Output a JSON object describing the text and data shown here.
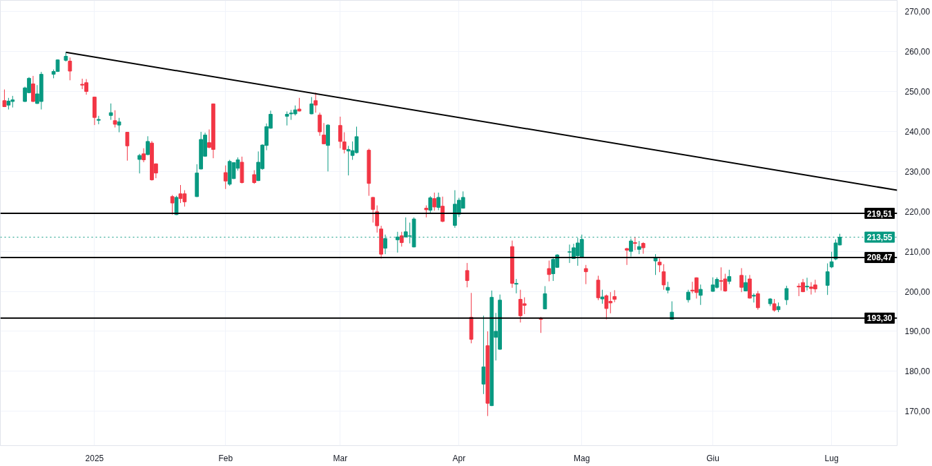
{
  "chart_data": {
    "type": "candlestick",
    "series": [
      {
        "color": "#089981",
        "x": [
          "2024-12-12",
          "2024-12-13",
          "2024-12-16",
          "2024-12-17",
          "2024-12-19",
          "2024-12-20",
          "2024-12-23",
          "2024-12-24",
          "2024-12-26",
          "2025-01-03",
          "2025-01-06",
          "2025-01-08",
          "2025-01-13",
          "2025-01-15",
          "2025-01-22",
          "2025-01-27",
          "2025-01-28",
          "2025-01-29",
          "2025-02-04",
          "2025-02-05",
          "2025-02-06",
          "2025-02-11",
          "2025-02-12",
          "2025-02-13",
          "2025-02-14",
          "2025-02-18",
          "2025-02-19",
          "2025-02-20",
          "2025-02-24",
          "2025-02-28",
          "2025-03-05",
          "2025-03-06",
          "2025-03-07",
          "2025-03-14",
          "2025-03-17",
          "2025-03-19",
          "2025-03-20",
          "2025-03-21",
          "2025-03-25",
          "2025-03-27",
          "2025-03-31",
          "2025-04-01",
          "2025-04-02",
          "2025-04-07",
          "2025-04-09",
          "2025-04-10",
          "2025-04-11",
          "2025-04-15",
          "2025-04-22",
          "2025-04-24",
          "2025-04-25",
          "2025-04-28",
          "2025-04-29",
          "2025-04-30",
          "2025-05-01",
          "2025-05-06",
          "2025-05-13",
          "2025-05-15",
          "2025-05-19",
          "2025-05-22",
          "2025-05-23",
          "2025-05-27",
          "2025-05-30",
          "2025-06-02",
          "2025-06-03",
          "2025-06-06",
          "2025-06-10",
          "2025-06-12",
          "2025-06-16",
          "2025-06-18",
          "2025-06-20",
          "2025-06-25",
          "2025-06-30",
          "2025-07-01",
          "2025-07-02",
          "2025-07-03"
        ],
        "ohlc": [
          [
            246.6,
            248.4,
            245.5,
            247.6
          ],
          [
            247.5,
            248.9,
            246.0,
            247.9
          ],
          [
            247.5,
            251.2,
            247.4,
            250.9
          ],
          [
            249.7,
            253.6,
            249.6,
            253.3
          ],
          [
            247.0,
            251.6,
            246.9,
            249.4
          ],
          [
            247.5,
            254.9,
            245.5,
            254.3
          ],
          [
            254.3,
            255.5,
            253.3,
            255.0
          ],
          [
            255.0,
            258.0,
            254.9,
            257.9
          ],
          [
            257.8,
            259.8,
            257.5,
            258.8
          ],
          [
            242.8,
            243.9,
            241.8,
            243.0
          ],
          [
            244.0,
            247.0,
            242.9,
            244.7
          ],
          [
            241.6,
            243.4,
            239.8,
            242.4
          ],
          [
            233.0,
            234.4,
            229.5,
            234.0
          ],
          [
            234.2,
            238.8,
            234.1,
            237.5
          ],
          [
            219.2,
            223.9,
            219.1,
            223.5
          ],
          [
            223.7,
            231.8,
            223.6,
            229.6
          ],
          [
            230.6,
            239.9,
            230.5,
            238.0
          ],
          [
            233.8,
            239.7,
            233.7,
            239.1
          ],
          [
            226.8,
            232.9,
            226.4,
            232.5
          ],
          [
            228.2,
            232.3,
            228.1,
            232.2
          ],
          [
            230.8,
            233.5,
            230.2,
            232.9
          ],
          [
            227.7,
            235.0,
            227.6,
            232.3
          ],
          [
            230.7,
            236.8,
            230.4,
            236.6
          ],
          [
            236.5,
            242.0,
            235.3,
            241.2
          ],
          [
            240.8,
            245.2,
            240.7,
            244.3
          ],
          [
            243.8,
            245.0,
            241.5,
            244.3
          ],
          [
            244.4,
            245.4,
            242.9,
            244.6
          ],
          [
            244.4,
            246.5,
            244.0,
            245.4
          ],
          [
            244.4,
            248.6,
            244.3,
            246.9
          ],
          [
            236.5,
            241.8,
            230.0,
            241.6
          ],
          [
            235.1,
            236.4,
            229.0,
            235.5
          ],
          [
            234.0,
            237.5,
            232.9,
            235.2
          ],
          [
            234.7,
            241.2,
            234.5,
            238.7
          ],
          [
            210.8,
            214.2,
            209.3,
            213.2
          ],
          [
            212.9,
            214.9,
            209.7,
            213.6
          ],
          [
            213.6,
            218.5,
            213.5,
            214.9
          ],
          [
            213.8,
            217.2,
            212.0,
            213.9
          ],
          [
            211.1,
            218.5,
            211.0,
            218.1
          ],
          [
            220.3,
            223.8,
            219.7,
            223.4
          ],
          [
            221.0,
            224.7,
            220.3,
            223.5
          ],
          [
            216.5,
            225.3,
            215.9,
            221.8
          ],
          [
            219.3,
            223.4,
            218.6,
            222.8
          ],
          [
            220.8,
            225.0,
            220.7,
            223.5
          ],
          [
            176.8,
            193.9,
            174.3,
            181.1
          ],
          [
            171.4,
            200.2,
            171.3,
            198.5
          ],
          [
            188.5,
            194.6,
            182.7,
            190.0
          ],
          [
            185.5,
            199.2,
            185.4,
            197.8
          ],
          [
            201.8,
            203.1,
            199.5,
            202.0
          ],
          [
            195.6,
            201.3,
            195.5,
            199.4
          ],
          [
            204.4,
            208.6,
            202.6,
            208.0
          ],
          [
            206.0,
            209.3,
            205.9,
            209.1
          ],
          [
            209.8,
            211.7,
            207.1,
            209.9
          ],
          [
            208.2,
            211.9,
            208.1,
            210.9
          ],
          [
            208.9,
            213.4,
            206.4,
            212.1
          ],
          [
            208.6,
            214.2,
            208.5,
            213.0
          ],
          [
            198.1,
            200.4,
            196.9,
            198.6
          ],
          [
            210.0,
            213.2,
            208.7,
            212.6
          ],
          [
            210.5,
            212.6,
            209.3,
            211.2
          ],
          [
            207.6,
            209.3,
            204.1,
            208.5
          ],
          [
            200.3,
            202.4,
            199.5,
            201.0
          ],
          [
            193.0,
            197.5,
            192.9,
            194.8
          ],
          [
            197.9,
            200.4,
            197.2,
            199.8
          ],
          [
            199.0,
            201.7,
            196.6,
            200.5
          ],
          [
            200.0,
            203.5,
            199.9,
            201.6
          ],
          [
            201.0,
            203.5,
            200.7,
            203.0
          ],
          [
            202.5,
            205.4,
            201.8,
            203.7
          ],
          [
            200.1,
            204.0,
            200.0,
            202.2
          ],
          [
            198.8,
            199.5,
            197.2,
            199.0
          ],
          [
            196.9,
            198.3,
            196.3,
            198.1
          ],
          [
            195.4,
            197.2,
            194.8,
            196.2
          ],
          [
            197.9,
            201.4,
            196.6,
            200.7
          ],
          [
            201.1,
            203.4,
            200.2,
            201.3
          ],
          [
            201.5,
            207.0,
            199.1,
            204.9
          ],
          [
            206.1,
            209.9,
            205.8,
            207.4
          ],
          [
            208.1,
            213.0,
            207.8,
            212.1
          ],
          [
            211.6,
            214.4,
            211.5,
            213.55
          ]
        ]
      },
      {
        "color": "#f23645",
        "x": [
          "2024-12-11",
          "2024-12-18",
          "2024-12-27",
          "2024-12-30",
          "2024-12-31",
          "2025-01-02",
          "2025-01-07",
          "2025-01-10",
          "2025-01-14",
          "2025-01-16",
          "2025-01-17",
          "2025-01-21",
          "2025-01-23",
          "2025-01-24",
          "2025-01-30",
          "2025-01-31",
          "2025-02-03",
          "2025-02-07",
          "2025-02-10",
          "2025-02-21",
          "2025-02-25",
          "2025-02-26",
          "2025-02-27",
          "2025-03-03",
          "2025-03-04",
          "2025-03-10",
          "2025-03-11",
          "2025-03-12",
          "2025-03-13",
          "2025-03-18",
          "2025-03-24",
          "2025-03-26",
          "2025-03-28",
          "2025-04-03",
          "2025-04-04",
          "2025-04-08",
          "2025-04-14",
          "2025-04-16",
          "2025-04-17",
          "2025-04-21",
          "2025-04-23",
          "2025-05-02",
          "2025-05-05",
          "2025-05-07",
          "2025-05-08",
          "2025-05-09",
          "2025-05-12",
          "2025-05-14",
          "2025-05-16",
          "2025-05-20",
          "2025-05-21",
          "2025-05-28",
          "2025-05-29",
          "2025-06-04",
          "2025-06-05",
          "2025-06-09",
          "2025-06-11",
          "2025-06-13",
          "2025-06-17",
          "2025-06-23",
          "2025-06-24",
          "2025-06-26",
          "2025-06-27"
        ],
        "ohlc": [
          [
            247.7,
            250.5,
            246.1,
            246.2
          ],
          [
            251.9,
            253.9,
            247.4,
            247.5
          ],
          [
            257.6,
            258.5,
            252.8,
            255.1
          ],
          [
            251.8,
            253.2,
            250.6,
            251.6
          ],
          [
            252.2,
            253.1,
            249.2,
            250.0
          ],
          [
            248.6,
            248.7,
            241.6,
            243.5
          ],
          [
            242.7,
            245.3,
            241.0,
            241.8
          ],
          [
            239.8,
            239.9,
            232.7,
            236.4
          ],
          [
            234.4,
            235.8,
            232.3,
            232.9
          ],
          [
            237.1,
            237.6,
            227.7,
            227.9
          ],
          [
            231.9,
            232.0,
            228.3,
            229.6
          ],
          [
            223.7,
            224.1,
            219.2,
            222.1
          ],
          [
            224.4,
            226.6,
            222.1,
            223.2
          ],
          [
            224.4,
            225.3,
            221.2,
            222.4
          ],
          [
            237.2,
            240.5,
            235.8,
            236.0
          ],
          [
            246.9,
            247.0,
            233.3,
            235.5
          ],
          [
            229.7,
            231.5,
            225.6,
            227.6
          ],
          [
            232.3,
            233.7,
            227.0,
            227.2
          ],
          [
            229.2,
            230.3,
            226.9,
            227.2
          ],
          [
            245.6,
            248.4,
            245.0,
            245.1
          ],
          [
            247.7,
            249.7,
            244.7,
            246.6
          ],
          [
            244.1,
            244.7,
            238.9,
            239.9
          ],
          [
            239.1,
            242.1,
            236.8,
            236.9
          ],
          [
            241.5,
            243.7,
            235.8,
            237.5
          ],
          [
            237.4,
            239.8,
            234.5,
            235.5
          ],
          [
            235.3,
            235.7,
            223.9,
            227.0
          ],
          [
            223.5,
            223.6,
            217.2,
            220.5
          ],
          [
            219.9,
            221.5,
            214.7,
            216.4
          ],
          [
            215.6,
            216.4,
            208.2,
            209.3
          ],
          [
            213.9,
            214.9,
            211.2,
            212.2
          ],
          [
            220.8,
            221.5,
            218.5,
            220.4
          ],
          [
            223.2,
            224.7,
            220.2,
            221.1
          ],
          [
            221.3,
            223.7,
            217.3,
            217.5
          ],
          [
            205.2,
            207.1,
            201.0,
            202.7
          ],
          [
            193.5,
            199.6,
            187.0,
            188.0
          ],
          [
            186.4,
            190.0,
            168.8,
            172.0
          ],
          [
            211.2,
            212.7,
            200.9,
            202.0
          ],
          [
            198.0,
            200.4,
            192.2,
            193.9
          ],
          [
            196.9,
            198.5,
            194.3,
            196.5
          ],
          [
            193.2,
            193.6,
            189.6,
            193.0
          ],
          [
            205.7,
            207.7,
            202.5,
            204.2
          ],
          [
            205.7,
            206.6,
            201.8,
            204.9
          ],
          [
            202.8,
            203.9,
            197.8,
            198.4
          ],
          [
            198.9,
            199.2,
            193.0,
            195.7
          ],
          [
            197.5,
            199.8,
            194.5,
            197.1
          ],
          [
            198.7,
            200.3,
            197.3,
            198.0
          ],
          [
            210.7,
            210.9,
            206.6,
            210.3
          ],
          [
            212.2,
            213.6,
            210.3,
            212.0
          ],
          [
            212.0,
            212.3,
            209.4,
            210.9
          ],
          [
            207.3,
            208.2,
            204.8,
            206.6
          ],
          [
            204.9,
            206.8,
            200.4,
            201.6
          ],
          [
            200.3,
            202.4,
            199.5,
            200.1
          ],
          [
            203.4,
            203.5,
            198.2,
            199.7
          ],
          [
            202.7,
            206.0,
            200.2,
            202.5
          ],
          [
            203.1,
            204.4,
            199.9,
            200.1
          ],
          [
            204.0,
            205.8,
            199.8,
            201.0
          ],
          [
            203.1,
            204.1,
            198.2,
            198.3
          ],
          [
            199.4,
            200.1,
            195.4,
            195.9
          ],
          [
            196.9,
            198.1,
            194.9,
            195.3
          ],
          [
            201.3,
            202.0,
            198.8,
            201.1
          ],
          [
            202.2,
            203.1,
            199.8,
            199.9
          ],
          [
            201.1,
            202.3,
            199.2,
            200.7
          ],
          [
            201.6,
            202.9,
            199.7,
            200.6
          ]
        ]
      },
      {
        "type": "line",
        "color": "#000000",
        "x": [
          "2024-12-26",
          "2025-07-17"
        ],
        "values": [
          259.8,
          225.3
        ]
      }
    ],
    "ref_lines": [
      {
        "axis": "y",
        "value": 219.51,
        "label": "219,51",
        "color": "#000000",
        "line_style": "solid"
      },
      {
        "axis": "y",
        "value": 208.47,
        "label": "208,47",
        "color": "#000000",
        "line_style": "solid"
      },
      {
        "axis": "y",
        "value": 193.3,
        "label": "193,30",
        "color": "#000000",
        "line_style": "solid"
      },
      {
        "axis": "y",
        "value": 213.55,
        "label": "213,55",
        "color": "#089981",
        "line_style": "dotted"
      }
    ],
    "xlim": [
      "2024-12-10",
      "2025-07-17"
    ],
    "xticks": [
      {
        "value": "2025-01-02",
        "label": "2025"
      },
      {
        "value": "2025-02-03",
        "label": "Feb"
      },
      {
        "value": "2025-03-03",
        "label": "Mar"
      },
      {
        "value": "2025-04-01",
        "label": "Apr"
      },
      {
        "value": "2025-05-01",
        "label": "Mag"
      },
      {
        "value": "2025-06-02",
        "label": "Giu"
      },
      {
        "value": "2025-07-01",
        "label": "Lug"
      }
    ],
    "ylim": [
      161.4,
      272.8
    ],
    "yticks": [
      {
        "value": 170,
        "label": "170,00"
      },
      {
        "value": 180,
        "label": "180,00"
      },
      {
        "value": 190,
        "label": "190,00"
      },
      {
        "value": 200,
        "label": "200,00"
      },
      {
        "value": 210,
        "label": "210,00"
      },
      {
        "value": 220,
        "label": "220,00"
      },
      {
        "value": 230,
        "label": "230,00"
      },
      {
        "value": 240,
        "label": "240,00"
      },
      {
        "value": 250,
        "label": "250,00"
      },
      {
        "value": 260,
        "label": "260,00"
      },
      {
        "value": 270,
        "label": "270,00"
      }
    ],
    "grid": true
  }
}
